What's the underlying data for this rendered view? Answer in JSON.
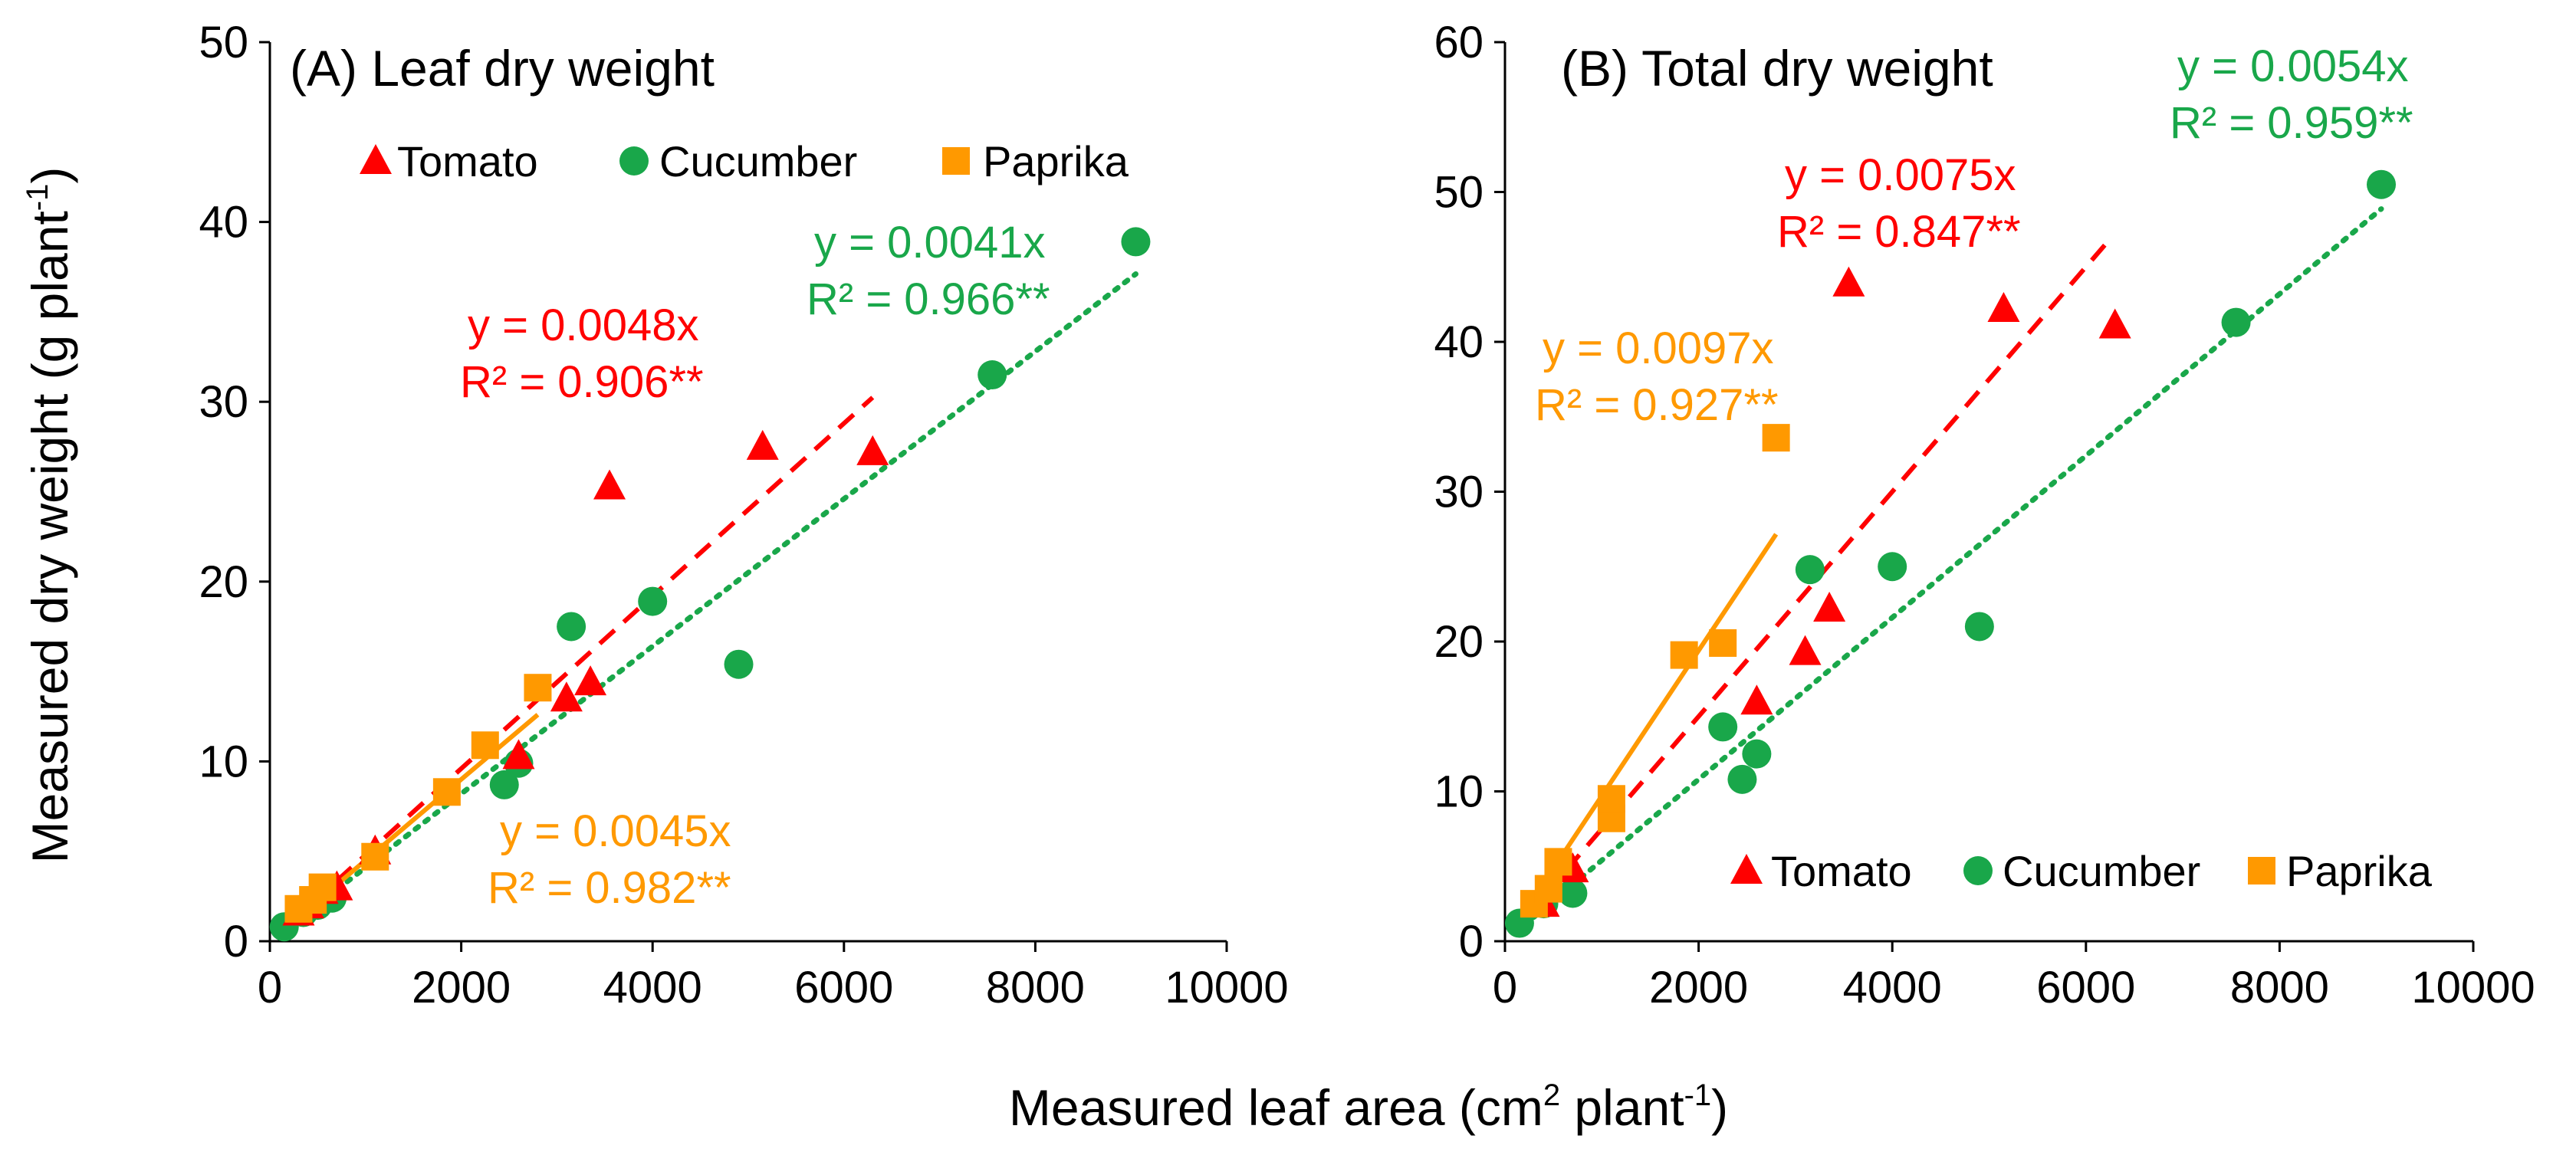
{
  "figure": {
    "ylabel": "Measured dry weight (g plant",
    "ylabel_sup": "-1",
    "ylabel_end": ")",
    "xlabel_pre": "Measured leaf area (cm",
    "xlabel_sup1": "2",
    "xlabel_mid": " plant",
    "xlabel_sup2": "-1",
    "xlabel_end": ")"
  },
  "colors": {
    "tomato": "#ff0000",
    "cucumber": "#19a74a",
    "paprika": "#ff9900"
  },
  "chart_data": [
    {
      "type": "scatter",
      "title": "(A) Leaf dry weight",
      "xlabel": "Measured leaf area (cm2 plant-1)",
      "ylabel": "Measured dry weight (g plant-1)",
      "xlim": [
        0,
        10000
      ],
      "ylim": [
        0,
        50
      ],
      "xticks": [
        "0",
        "2000",
        "4000",
        "6000",
        "8000",
        "10000"
      ],
      "yticks": [
        "0",
        "10",
        "20",
        "30",
        "40",
        "50"
      ],
      "legend": {
        "placement": "top",
        "entries": [
          "Tomato",
          "Cucumber",
          "Paprika"
        ]
      },
      "series": [
        {
          "name": "Tomato",
          "marker": "triangle",
          "color": "#ff0000",
          "line": "dashed",
          "points": [
            [
              300,
              1.6
            ],
            [
              400,
              2.0
            ],
            [
              550,
              2.8
            ],
            [
              700,
              3.0
            ],
            [
              1100,
              5.0
            ],
            [
              2600,
              10.3
            ],
            [
              3100,
              13.5
            ],
            [
              3350,
              14.4
            ],
            [
              3550,
              25.3
            ],
            [
              5150,
              27.5
            ],
            [
              6300,
              27.2
            ]
          ],
          "fit_slope": 0.0048,
          "fit_range": [
            200,
            6300
          ],
          "equation": "y = 0.0048x",
          "r2": "R² = 0.906**"
        },
        {
          "name": "Cucumber",
          "marker": "circle",
          "color": "#19a74a",
          "line": "dotted",
          "points": [
            [
              150,
              0.8
            ],
            [
              350,
              1.6
            ],
            [
              500,
              2.0
            ],
            [
              650,
              2.4
            ],
            [
              2450,
              8.7
            ],
            [
              2600,
              9.9
            ],
            [
              3150,
              17.5
            ],
            [
              4000,
              18.9
            ],
            [
              4900,
              15.4
            ],
            [
              7550,
              31.5
            ],
            [
              9050,
              38.9
            ]
          ],
          "fit_slope": 0.0041,
          "fit_range": [
            200,
            9050
          ],
          "equation": "y = 0.0041x",
          "r2": "R² = 0.966**"
        },
        {
          "name": "Paprika",
          "marker": "square",
          "color": "#ff9900",
          "line": "solid",
          "points": [
            [
              300,
              1.8
            ],
            [
              450,
              2.3
            ],
            [
              550,
              3.0
            ],
            [
              1100,
              4.7
            ],
            [
              1850,
              8.3
            ],
            [
              2250,
              10.9
            ],
            [
              2800,
              14.1
            ]
          ],
          "fit_slope": 0.0045,
          "fit_range": [
            200,
            2800
          ],
          "equation": "y = 0.0045x",
          "r2": "R² = 0.982**"
        }
      ]
    },
    {
      "type": "scatter",
      "title": "(B) Total dry weight",
      "xlabel": "Measured leaf area (cm2 plant-1)",
      "ylabel": "",
      "xlim": [
        0,
        10000
      ],
      "ylim": [
        0,
        60
      ],
      "xticks": [
        "0",
        "2000",
        "4000",
        "6000",
        "8000",
        "10000"
      ],
      "yticks": [
        "0",
        "10",
        "20",
        "30",
        "40",
        "50",
        "60"
      ],
      "legend": {
        "placement": "bottom-right",
        "entries": [
          "Tomato",
          "Cucumber",
          "Paprika"
        ]
      },
      "series": [
        {
          "name": "Tomato",
          "marker": "triangle",
          "color": "#ff0000",
          "line": "dashed",
          "points": [
            [
              400,
              2.5
            ],
            [
              700,
              4.8
            ],
            [
              2600,
              16.0
            ],
            [
              3100,
              19.3
            ],
            [
              3350,
              22.2
            ],
            [
              3550,
              43.9
            ],
            [
              5150,
              42.2
            ],
            [
              6300,
              41.1
            ]
          ],
          "fit_slope": 0.0075,
          "fit_range": [
            200,
            6200
          ],
          "equation": "y = 0.0075x",
          "r2": "R² = 0.847**"
        },
        {
          "name": "Cucumber",
          "marker": "circle",
          "color": "#19a74a",
          "line": "dotted",
          "points": [
            [
              150,
              1.2
            ],
            [
              400,
              2.5
            ],
            [
              700,
              3.2
            ],
            [
              2250,
              14.3
            ],
            [
              2450,
              10.8
            ],
            [
              2600,
              12.5
            ],
            [
              3150,
              24.8
            ],
            [
              4000,
              25.0
            ],
            [
              4900,
              21.0
            ],
            [
              7550,
              41.3
            ],
            [
              9050,
              50.5
            ]
          ],
          "fit_slope": 0.0054,
          "fit_range": [
            200,
            9050
          ],
          "equation": "y = 0.0054x",
          "r2": "R² = 0.959**"
        },
        {
          "name": "Paprika",
          "marker": "square",
          "color": "#ff9900",
          "line": "solid",
          "points": [
            [
              300,
              2.5
            ],
            [
              450,
              3.5
            ],
            [
              550,
              5.3
            ],
            [
              1100,
              8.2
            ],
            [
              1100,
              9.5
            ],
            [
              1850,
              19.1
            ],
            [
              2250,
              19.9
            ],
            [
              2800,
              33.6
            ]
          ],
          "fit_slope": 0.0097,
          "fit_range": [
            200,
            2800
          ],
          "equation": "y = 0.0097x",
          "r2": "R² = 0.927**"
        }
      ]
    }
  ]
}
